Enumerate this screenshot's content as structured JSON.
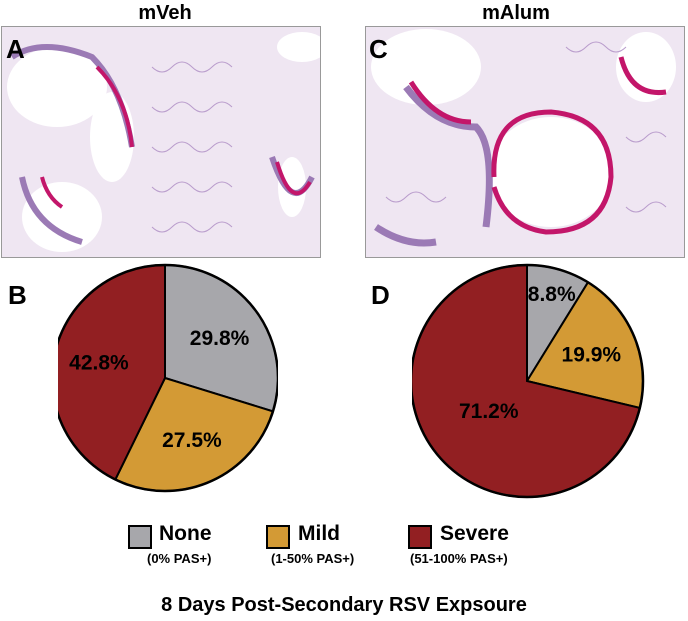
{
  "panels": {
    "left_title": "mVeh",
    "right_title": "mAlum",
    "letter_a": "A",
    "letter_b": "B",
    "letter_c": "C",
    "letter_d": "D"
  },
  "colors": {
    "none": "#a7a7ab",
    "mild": "#d39a35",
    "severe": "#921f22",
    "tissue": "#c9b3d8",
    "pas_stain": "#c3166a"
  },
  "chart_data": [
    {
      "type": "pie",
      "panel": "B",
      "group": "mVeh",
      "slices": [
        {
          "name": "None",
          "value": 29.8,
          "label": "29.8%"
        },
        {
          "name": "Mild",
          "value": 27.5,
          "label": "27.5%"
        },
        {
          "name": "Severe",
          "value": 42.8,
          "label": "42.8%"
        }
      ],
      "start": "top",
      "direction": "clockwise"
    },
    {
      "type": "pie",
      "panel": "D",
      "group": "mAlum",
      "slices": [
        {
          "name": "None",
          "value": 8.8,
          "label": "8.8%"
        },
        {
          "name": "Mild",
          "value": 19.9,
          "label": "19.9%"
        },
        {
          "name": "Severe",
          "value": 71.2,
          "label": "71.2%"
        }
      ],
      "start": "top",
      "direction": "clockwise"
    }
  ],
  "legend": [
    {
      "label": "None",
      "sub": "(0% PAS+)"
    },
    {
      "label": "Mild",
      "sub": "(1-50% PAS+)"
    },
    {
      "label": "Severe",
      "sub": "(51-100% PAS+)"
    }
  ],
  "caption": "8 Days Post-Secondary RSV Expsoure"
}
